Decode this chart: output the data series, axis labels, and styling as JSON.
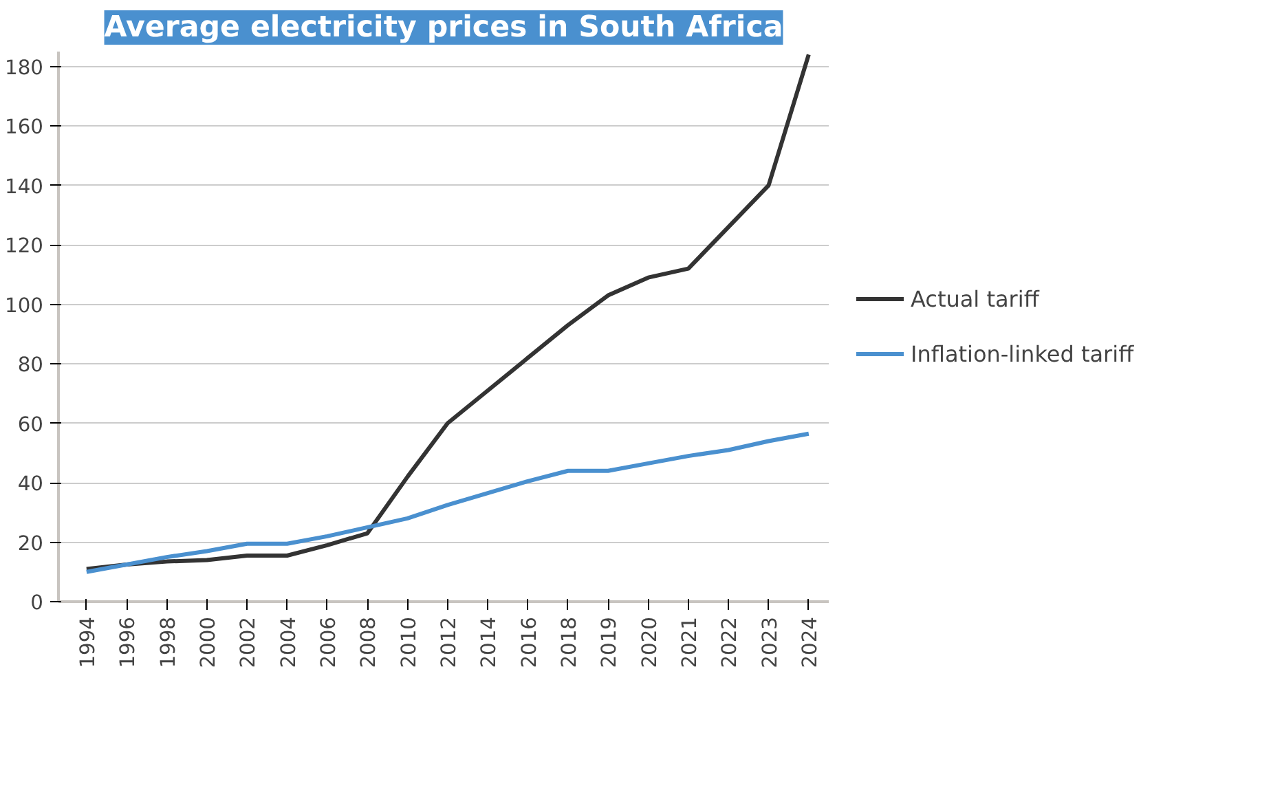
{
  "chart_data": {
    "type": "line",
    "title": "Average electricity prices in South Africa",
    "categories": [
      "1994",
      "1996",
      "1998",
      "2000",
      "2002",
      "2004",
      "2006",
      "2008",
      "2010",
      "2012",
      "2014",
      "2016",
      "2018",
      "2019",
      "2020",
      "2021",
      "2022",
      "2023",
      "2024"
    ],
    "series": [
      {
        "name": "Actual tariff",
        "color": "#333333",
        "values": [
          11,
          12.5,
          13.5,
          14,
          15.5,
          15.5,
          19,
          23,
          42,
          60,
          71,
          82,
          93,
          103,
          109,
          112,
          126,
          140,
          184
        ]
      },
      {
        "name": "Inflation-linked tariff",
        "color": "#4a90cf",
        "values": [
          10,
          12.5,
          15,
          17,
          19.5,
          19.5,
          22,
          25,
          28,
          32.5,
          36.5,
          40.5,
          44,
          44,
          46.5,
          49,
          51,
          54,
          56.5
        ]
      }
    ],
    "ylim": [
      0,
      185
    ],
    "yticks": [
      0,
      20,
      40,
      60,
      80,
      100,
      120,
      140,
      160,
      180
    ],
    "grid": "y",
    "legend": "right",
    "marker": "none",
    "line_style": "solid"
  }
}
